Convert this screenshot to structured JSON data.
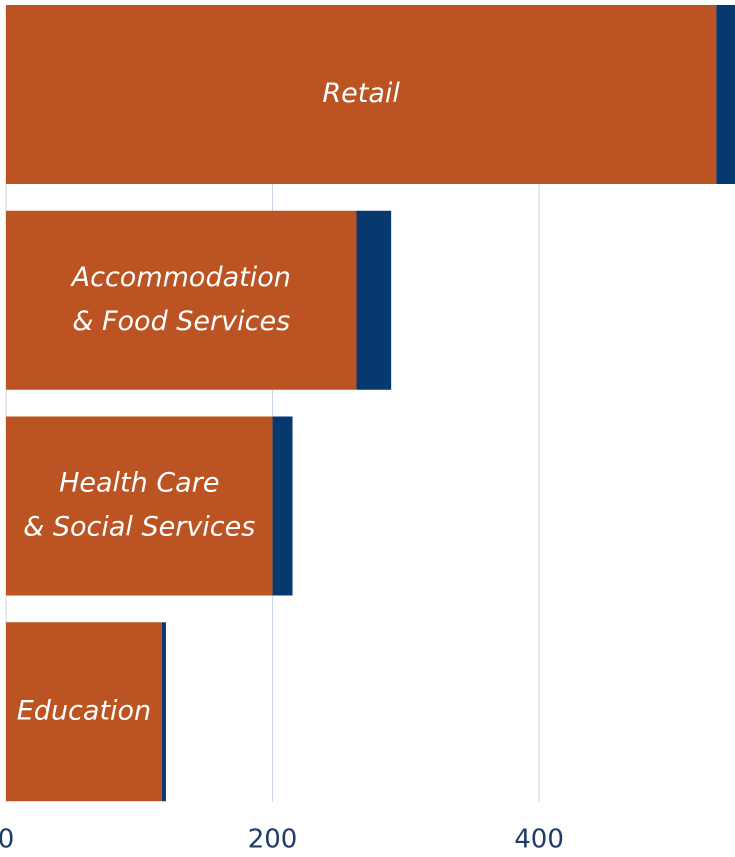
{
  "chart_data": {
    "type": "stacked-barh",
    "categories": [
      [
        "Retail"
      ],
      [
        "Accommodation",
        "& Food Services"
      ],
      [
        "Health Care",
        "& Social Services"
      ],
      [
        "Education"
      ]
    ],
    "series": [
      {
        "color": "#bb5422",
        "values": [
          533,
          263,
          200,
          117
        ]
      },
      {
        "color": "#063a6e",
        "values": [
          14,
          26,
          15,
          3
        ]
      }
    ],
    "xlim": [
      0,
      547
    ],
    "xticks": [
      0,
      200,
      400
    ],
    "grid": true
  }
}
